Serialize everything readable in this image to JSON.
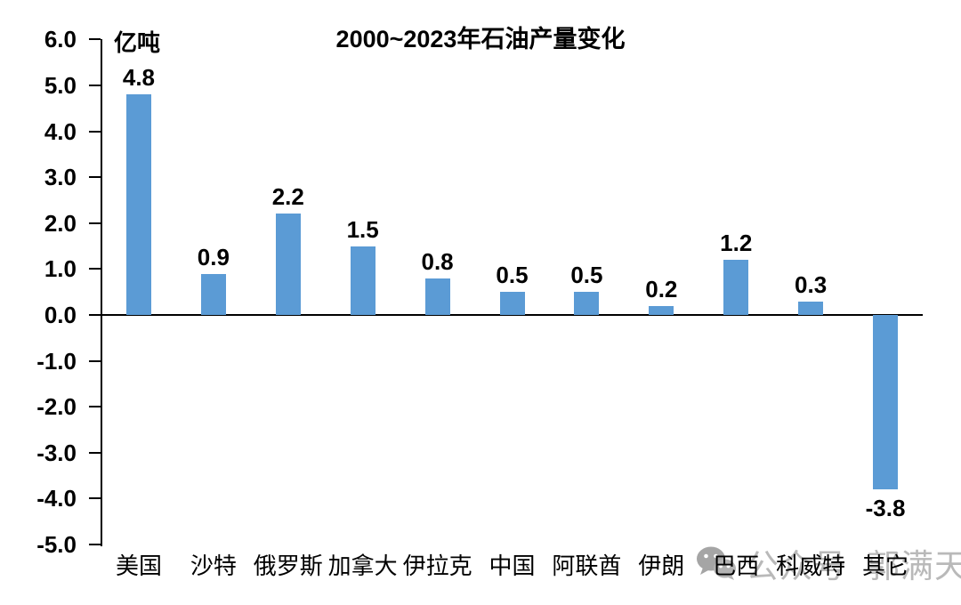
{
  "chart_data": {
    "type": "bar",
    "title": "2000~2023年石油产量变化",
    "categories": [
      "美国",
      "沙特",
      "俄罗斯",
      "加拿大",
      "伊拉克",
      "中国",
      "阿联酋",
      "伊朗",
      "巴西",
      "科威特",
      "其它"
    ],
    "values": [
      4.8,
      0.9,
      2.2,
      1.5,
      0.8,
      0.5,
      0.5,
      0.2,
      1.2,
      0.3,
      -3.8
    ],
    "xlabel": "",
    "ylabel": "亿吨",
    "ylim": [
      -5.0,
      6.0
    ],
    "ytick_step": 1.0,
    "ytick_decimals": 1,
    "bar_color": "#5B9BD5",
    "axis_color": "#000000",
    "grid": false,
    "legend": false,
    "value_labels_shown": true
  },
  "watermark": {
    "icon": "wechat-icon",
    "text_prefix": "公众号",
    "text_name": "郭满天",
    "color": "#B2B2B2"
  }
}
